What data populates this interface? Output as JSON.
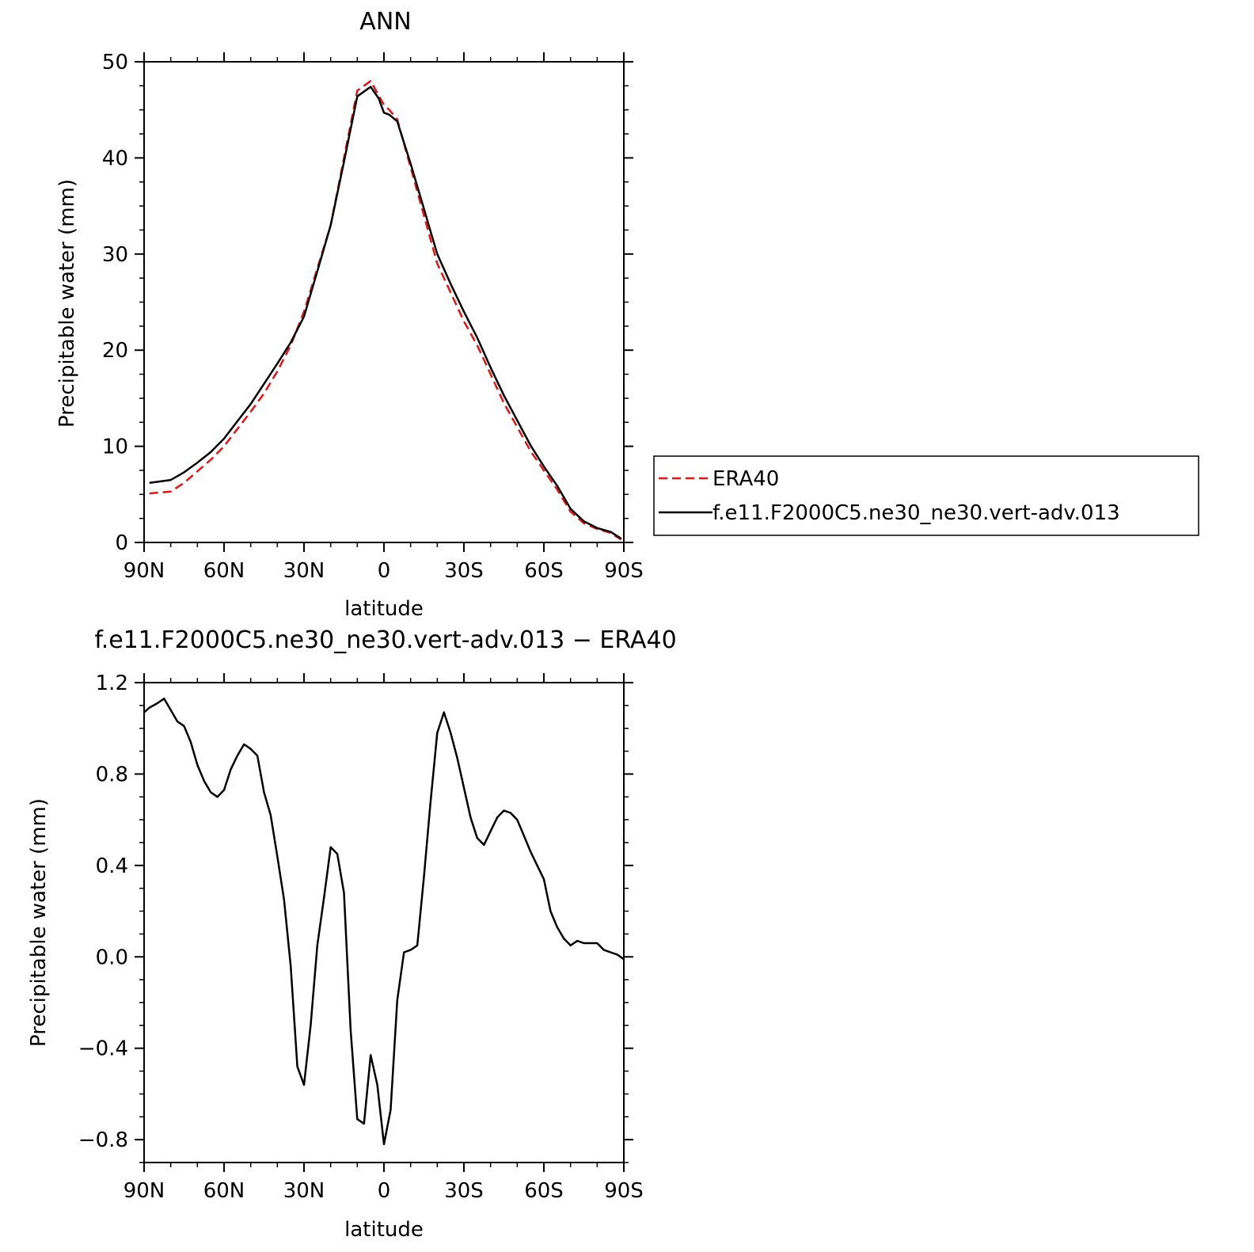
{
  "colors": {
    "model": "#000000",
    "obs": "#ee1111",
    "axis": "#000000"
  },
  "chart_data": [
    {
      "type": "line",
      "title": "ANN",
      "xlabel": "latitude",
      "ylabel": "Precipitable water (mm)",
      "xlim": [
        90,
        -90
      ],
      "ylim": [
        0,
        50
      ],
      "xticks": [
        {
          "value": 90,
          "label": "90N"
        },
        {
          "value": 60,
          "label": "60N"
        },
        {
          "value": 30,
          "label": "30N"
        },
        {
          "value": 0,
          "label": "0"
        },
        {
          "value": -30,
          "label": "30S"
        },
        {
          "value": -60,
          "label": "60S"
        },
        {
          "value": -90,
          "label": "90S"
        }
      ],
      "yticks": [
        {
          "value": 0,
          "label": "0"
        },
        {
          "value": 10,
          "label": "10"
        },
        {
          "value": 20,
          "label": "20"
        },
        {
          "value": 30,
          "label": "30"
        },
        {
          "value": 40,
          "label": "40"
        },
        {
          "value": 50,
          "label": "50"
        }
      ],
      "legend_position": "right",
      "series": [
        {
          "name": "ERA40",
          "style": "dashed",
          "color": "#ee1111",
          "x": [
            88,
            80,
            75,
            70,
            65,
            60,
            55,
            50,
            45,
            40,
            35,
            30,
            25,
            20,
            15,
            10,
            5,
            2,
            0,
            -2,
            -5,
            -10,
            -15,
            -20,
            -25,
            -30,
            -35,
            -40,
            -45,
            -50,
            -55,
            -60,
            -65,
            -70,
            -75,
            -80,
            -85,
            -89
          ],
          "y": [
            5.1,
            5.3,
            6.2,
            7.4,
            8.6,
            10.0,
            11.8,
            13.6,
            15.5,
            17.8,
            20.5,
            24.0,
            28.5,
            33.0,
            40.0,
            47.0,
            48.0,
            46.5,
            45.5,
            45.0,
            44.0,
            39.0,
            34.0,
            29.0,
            26.0,
            23.0,
            20.5,
            17.5,
            14.5,
            12.0,
            9.5,
            7.5,
            5.5,
            3.2,
            2.0,
            1.4,
            1.0,
            0.3
          ]
        },
        {
          "name": "f.e11.F2000C5.ne30_ne30.vert-adv.013",
          "style": "solid",
          "color": "#000000",
          "x": [
            88,
            80,
            75,
            70,
            65,
            60,
            55,
            50,
            45,
            40,
            35,
            30,
            25,
            20,
            15,
            10,
            5,
            2,
            0,
            -2,
            -5,
            -10,
            -15,
            -20,
            -25,
            -30,
            -35,
            -40,
            -45,
            -50,
            -55,
            -60,
            -65,
            -70,
            -75,
            -80,
            -85,
            -89
          ],
          "y": [
            6.2,
            6.5,
            7.3,
            8.3,
            9.4,
            10.8,
            12.6,
            14.4,
            16.5,
            18.6,
            20.8,
            23.5,
            28.2,
            33.0,
            39.6,
            46.4,
            47.4,
            46.2,
            44.7,
            44.5,
            43.8,
            39.4,
            34.7,
            30.0,
            26.9,
            24.0,
            21.3,
            18.2,
            15.3,
            12.7,
            10.1,
            7.9,
            5.9,
            3.5,
            2.2,
            1.5,
            1.1,
            0.4
          ]
        }
      ]
    },
    {
      "type": "line",
      "title": "f.e11.F2000C5.ne30_ne30.vert-adv.013 − ERA40",
      "xlabel": "latitude",
      "ylabel": "Precipitable water (mm)",
      "xlim": [
        90,
        -90
      ],
      "ylim": [
        -0.9,
        1.2
      ],
      "xticks": [
        {
          "value": 90,
          "label": "90N"
        },
        {
          "value": 60,
          "label": "60N"
        },
        {
          "value": 30,
          "label": "30N"
        },
        {
          "value": 0,
          "label": "0"
        },
        {
          "value": -30,
          "label": "30S"
        },
        {
          "value": -60,
          "label": "60S"
        },
        {
          "value": -90,
          "label": "90S"
        }
      ],
      "yticks": [
        {
          "value": -0.8,
          "label": "−0.8"
        },
        {
          "value": -0.4,
          "label": "−0.4"
        },
        {
          "value": 0.0,
          "label": "0.0"
        },
        {
          "value": 0.4,
          "label": "0.4"
        },
        {
          "value": 0.8,
          "label": "0.8"
        },
        {
          "value": 1.2,
          "label": "1.2"
        }
      ],
      "series": [
        {
          "style": "solid",
          "color": "#000000",
          "x": [
            90,
            88,
            85,
            82.5,
            80,
            77.5,
            75,
            72.5,
            70,
            67.5,
            65,
            62.5,
            60,
            57.5,
            55,
            52.5,
            50,
            47.5,
            45,
            42.5,
            40,
            37.5,
            35,
            32.5,
            30,
            27.5,
            25,
            22.5,
            20,
            17.5,
            15,
            12.5,
            10,
            7.5,
            5,
            2.5,
            0,
            -2.5,
            -5,
            -7.5,
            -10,
            -12.5,
            -15,
            -17.5,
            -20,
            -22.5,
            -25,
            -27.5,
            -30,
            -32.5,
            -35,
            -37.5,
            -40,
            -42.5,
            -45,
            -47.5,
            -50,
            -52.5,
            -55,
            -57.5,
            -60,
            -62.5,
            -65,
            -67.5,
            -70,
            -72.5,
            -75,
            -77.5,
            -80,
            -82.5,
            -85,
            -87.5,
            -90
          ],
          "y": [
            1.07,
            1.09,
            1.11,
            1.13,
            1.08,
            1.03,
            1.01,
            0.94,
            0.84,
            0.77,
            0.72,
            0.7,
            0.73,
            0.82,
            0.88,
            0.93,
            0.91,
            0.88,
            0.72,
            0.62,
            0.44,
            0.25,
            -0.04,
            -0.48,
            -0.56,
            -0.3,
            0.05,
            0.26,
            0.48,
            0.45,
            0.28,
            -0.32,
            -0.71,
            -0.73,
            -0.43,
            -0.56,
            -0.82,
            -0.67,
            -0.19,
            0.02,
            0.03,
            0.05,
            0.35,
            0.68,
            0.98,
            1.07,
            0.98,
            0.87,
            0.74,
            0.61,
            0.52,
            0.49,
            0.55,
            0.61,
            0.64,
            0.63,
            0.6,
            0.53,
            0.46,
            0.4,
            0.34,
            0.2,
            0.13,
            0.08,
            0.05,
            0.07,
            0.06,
            0.06,
            0.06,
            0.03,
            0.02,
            0.01,
            -0.01
          ]
        }
      ]
    }
  ]
}
